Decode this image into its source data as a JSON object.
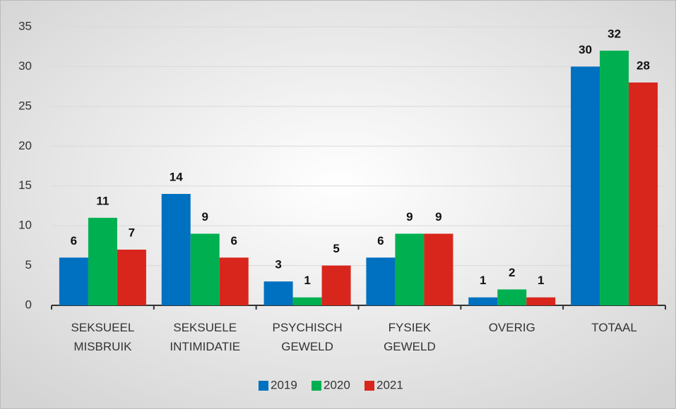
{
  "chart_data": {
    "type": "bar",
    "categories": [
      "SEKSUEEL MISBRUIK",
      "SEKSUELE INTIMIDATIE",
      "PSYCHISCH GEWELD",
      "FYSIEK GEWELD",
      "OVERIG",
      "TOTAAL"
    ],
    "series": [
      {
        "name": "2019",
        "color": "#0070c0",
        "values": [
          6,
          14,
          3,
          6,
          1,
          30
        ]
      },
      {
        "name": "2020",
        "color": "#00b050",
        "values": [
          11,
          9,
          1,
          9,
          2,
          32
        ]
      },
      {
        "name": "2021",
        "color": "#d9261c",
        "values": [
          7,
          6,
          5,
          9,
          1,
          28
        ]
      }
    ],
    "ylim": [
      0,
      35
    ],
    "yticks": [
      0,
      5,
      10,
      15,
      20,
      25,
      30,
      35
    ],
    "grid": true,
    "legend": "bottom"
  }
}
